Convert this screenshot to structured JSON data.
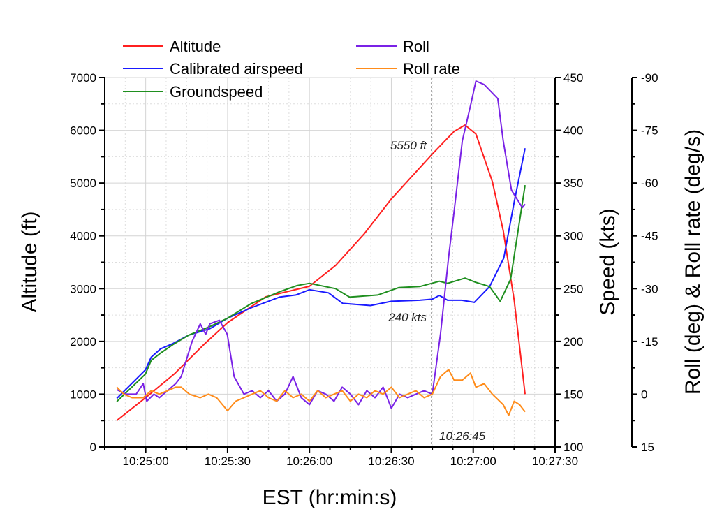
{
  "chart_data": {
    "type": "line",
    "xlabel": "EST (hr:min:s)",
    "ylabel_left": "Altitude (ft)",
    "ylabel_right1": "Speed (kts)",
    "ylabel_right2": "Roll (deg) & Roll rate (deg/s)",
    "x_unit": "seconds after 10:24:45",
    "xlim": [
      0,
      165
    ],
    "x_ticks": [
      {
        "t": 15,
        "label": "10:25:00"
      },
      {
        "t": 45,
        "label": "10:25:30"
      },
      {
        "t": 75,
        "label": "10:26:00"
      },
      {
        "t": 105,
        "label": "10:26:30"
      },
      {
        "t": 135,
        "label": "10:27:00"
      },
      {
        "t": 165,
        "label": "10:27:30"
      }
    ],
    "ylim_left": [
      0,
      7000
    ],
    "y_ticks_left": [
      "0",
      "1000",
      "2000",
      "3000",
      "4000",
      "5000",
      "6000",
      "7000"
    ],
    "ylim_speed": [
      100,
      450
    ],
    "y_ticks_speed": [
      "100",
      "150",
      "200",
      "250",
      "300",
      "350",
      "400",
      "450"
    ],
    "ylim_roll": [
      15,
      -90
    ],
    "y_ticks_roll": [
      "15",
      "0",
      "-15",
      "-30",
      "-45",
      "-60",
      "-75",
      "-90"
    ],
    "grid": true,
    "legend_position": "top",
    "series": [
      {
        "name": "Altitude",
        "axis": "left",
        "color": "#ff2020",
        "t": [
          4.4,
          14.9,
          25.6,
          35.9,
          45,
          59,
          75,
          84.6,
          95,
          105,
          120,
          128,
          132,
          136,
          142,
          146,
          150,
          154
        ],
        "y": [
          500,
          930,
          1390,
          1920,
          2355,
          2845,
          3045,
          3440,
          4035,
          4700,
          5550,
          5980,
          6100,
          5930,
          5030,
          4100,
          2780,
          1000
        ]
      },
      {
        "name": "Calibrated airspeed",
        "axis": "speed",
        "color": "#1a1aff",
        "t": [
          4.4,
          14.9,
          17,
          20.5,
          25,
          30.8,
          38.5,
          45,
          53.8,
          64,
          70,
          75,
          82,
          87.2,
          97.4,
          105,
          115.4,
          120,
          122.6,
          125.6,
          130.8,
          135.4,
          141,
          146.2,
          150,
          154
        ],
        "y": [
          146,
          173,
          185,
          193,
          198,
          206,
          212,
          222,
          232,
          242,
          244,
          249,
          246,
          236,
          234,
          238,
          239,
          240,
          243.6,
          239,
          239,
          237,
          252,
          279,
          332,
          383
        ]
      },
      {
        "name": "Groundspeed",
        "axis": "speed",
        "color": "#1f8f1f",
        "t": [
          4.4,
          14.9,
          17,
          20.5,
          25,
          30.8,
          38.5,
          45,
          53.8,
          64,
          70.5,
          75,
          84.6,
          89.7,
          100,
          107.7,
          115.4,
          122.6,
          125.6,
          132,
          135.9,
          141,
          144.9,
          148.7,
          154
        ],
        "y": [
          143,
          169,
          182,
          189,
          197,
          206,
          214,
          222,
          236,
          247,
          253,
          255,
          250,
          242,
          244,
          251,
          252,
          257,
          255,
          260,
          256,
          252,
          238,
          259,
          348
        ]
      },
      {
        "name": "Roll",
        "axis": "roll",
        "color": "#7a22e6",
        "t": [
          4.4,
          7.7,
          11.5,
          14.1,
          15.4,
          18,
          20,
          23,
          26,
          28,
          32,
          35,
          37,
          38.5,
          42,
          44.9,
          47.4,
          51,
          54,
          57,
          60,
          63,
          66,
          69,
          72,
          75,
          78,
          81,
          84,
          87,
          90,
          93,
          96,
          99,
          102,
          105,
          108,
          111,
          114,
          117,
          120,
          123,
          126,
          128,
          131,
          134,
          136,
          139,
          144,
          146,
          149,
          153,
          154
        ],
        "y": [
          -1.3,
          0,
          0,
          -3,
          2,
          0,
          1,
          -1,
          -3,
          -5,
          -15,
          -20,
          -17,
          -20,
          -21,
          -17,
          -5,
          0,
          -1,
          1,
          -1,
          2,
          0,
          -5,
          1,
          3,
          -1,
          0,
          2,
          -2,
          0,
          3,
          -1,
          1,
          -2,
          4,
          0,
          1,
          0,
          -1,
          0,
          -17,
          -39,
          -52,
          -72,
          -82,
          -89,
          -88,
          -84,
          -72,
          -58,
          -53,
          -54
        ]
      },
      {
        "name": "Roll rate",
        "axis": "roll",
        "color": "#ff8c1a",
        "t": [
          4.4,
          7,
          10,
          14.1,
          17,
          20,
          23,
          26,
          28,
          31,
          35,
          38,
          41,
          45,
          48,
          51,
          54,
          57,
          60,
          63,
          66,
          69,
          72,
          75,
          78,
          81,
          84,
          87,
          90,
          93,
          96,
          99,
          102,
          105,
          108,
          111,
          114,
          117,
          120,
          123,
          126,
          128,
          131,
          134,
          136,
          139,
          142,
          146,
          148,
          150,
          152,
          154
        ],
        "y": [
          -2,
          0,
          1,
          1,
          -1,
          0,
          -1,
          -2,
          -2,
          0,
          1,
          0,
          1,
          4.7,
          2,
          1,
          0,
          -1,
          1,
          2,
          -1,
          1,
          0,
          2,
          -1,
          1,
          0,
          -1,
          2,
          0,
          1,
          -1,
          0,
          -2,
          1,
          0,
          -1,
          1,
          0,
          -5,
          -7,
          -4,
          -4,
          -6,
          -2,
          -3,
          0,
          3,
          6,
          2,
          3,
          5
        ]
      }
    ],
    "annotations": [
      {
        "text": "5550 ft",
        "t": 120
      },
      {
        "text": "240 kts",
        "t": 120
      },
      {
        "text": "10:26:45",
        "t": 120
      }
    ]
  }
}
